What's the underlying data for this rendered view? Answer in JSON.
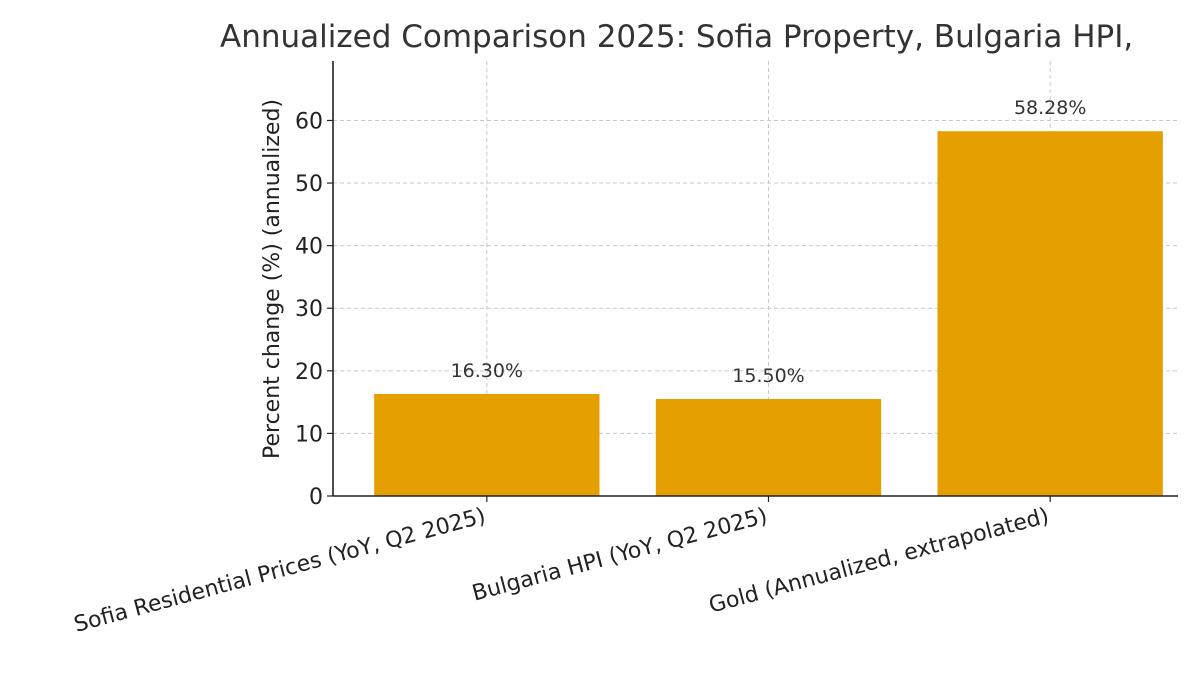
{
  "chart_data": {
    "type": "bar",
    "title": "Annualized Comparison 2025: Sofia Property, Bulgaria HPI,",
    "xlabel": "",
    "ylabel": "Percent change (%) (annualized)",
    "categories": [
      "Sofia Residential Prices (YoY, Q2 2025)",
      "Bulgaria HPI (YoY, Q2 2025)",
      "Gold (Annualized, extrapolated)"
    ],
    "values": [
      16.3,
      15.5,
      58.28
    ],
    "value_labels": [
      "16.30%",
      "15.50%",
      "58.28%"
    ],
    "ylim": [
      0,
      69.5
    ],
    "yticks": [
      0,
      10,
      20,
      30,
      40,
      50,
      60
    ],
    "grid": true,
    "legend": "none",
    "colors": {
      "bar": "#E69F00",
      "grid": "#c8c8c8",
      "axis": "#222222",
      "text": "#333333"
    }
  }
}
